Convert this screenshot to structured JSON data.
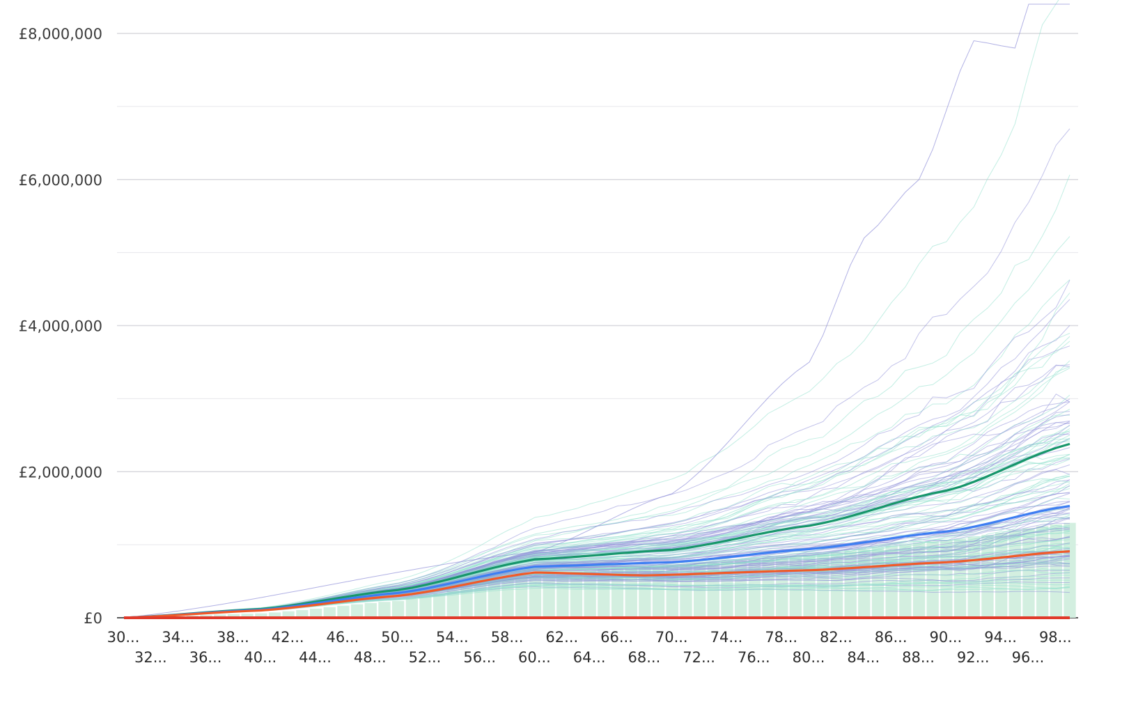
{
  "chart_data": {
    "type": "line",
    "title": "",
    "xlabel": "",
    "ylabel": "",
    "ylim": [
      0,
      8000000
    ],
    "y_ticks": [
      {
        "value": 0,
        "label": "£0"
      },
      {
        "value": 2000000,
        "label": "£2,000,000"
      },
      {
        "value": 4000000,
        "label": "£4,000,000"
      },
      {
        "value": 6000000,
        "label": "£6,000,000"
      },
      {
        "value": 8000000,
        "label": "£8,000,000"
      }
    ],
    "x_ticks_row1": [
      "30...",
      "34...",
      "38...",
      "42...",
      "46...",
      "50...",
      "54...",
      "58...",
      "62...",
      "66...",
      "70...",
      "74...",
      "78...",
      "82...",
      "86...",
      "90...",
      "94...",
      "98..."
    ],
    "x_ticks_row2": [
      "32...",
      "36...",
      "40...",
      "44...",
      "48...",
      "52...",
      "56...",
      "60...",
      "64...",
      "68...",
      "72...",
      "76...",
      "80...",
      "84...",
      "88...",
      "92...",
      "96..."
    ],
    "ages": [
      30,
      31,
      32,
      33,
      34,
      35,
      36,
      37,
      38,
      39,
      40,
      41,
      42,
      43,
      44,
      45,
      46,
      47,
      48,
      49,
      50,
      51,
      52,
      53,
      54,
      55,
      56,
      57,
      58,
      59,
      60,
      61,
      62,
      63,
      64,
      65,
      66,
      67,
      68,
      69,
      70,
      71,
      72,
      73,
      74,
      75,
      76,
      77,
      78,
      79,
      80,
      81,
      82,
      83,
      84,
      85,
      86,
      87,
      88,
      89,
      90,
      91,
      92,
      93,
      94,
      95,
      96,
      97,
      98,
      99
    ],
    "grid": true,
    "legend": "none",
    "colors": {
      "upper_line": "#17966b",
      "median_line": "#3d7ef2",
      "lower_line": "#f05a28",
      "zero_line": "#e03a2b",
      "area_fill": "#d3efe0",
      "sim_purple": "#8f8fd8",
      "sim_teal": "#8fe0cc",
      "grid": "#d8d8de"
    },
    "series": [
      {
        "role": "upper",
        "key_points": [
          [
            30,
            0
          ],
          [
            40,
            120000
          ],
          [
            50,
            380000
          ],
          [
            60,
            800000
          ],
          [
            70,
            930000
          ],
          [
            80,
            1260000
          ],
          [
            90,
            1740000
          ],
          [
            99,
            2380000
          ]
        ]
      },
      {
        "role": "median",
        "key_points": [
          [
            30,
            0
          ],
          [
            40,
            110000
          ],
          [
            50,
            340000
          ],
          [
            60,
            700000
          ],
          [
            70,
            760000
          ],
          [
            80,
            940000
          ],
          [
            90,
            1180000
          ],
          [
            99,
            1530000
          ]
        ]
      },
      {
        "role": "lower",
        "key_points": [
          [
            30,
            0
          ],
          [
            40,
            100000
          ],
          [
            50,
            300000
          ],
          [
            60,
            620000
          ],
          [
            68,
            580000
          ],
          [
            80,
            650000
          ],
          [
            90,
            760000
          ],
          [
            99,
            910000
          ]
        ]
      },
      {
        "role": "zero",
        "key_points": [
          [
            30,
            0
          ],
          [
            99,
            0
          ]
        ]
      }
    ],
    "area": {
      "key_points": [
        [
          30,
          0
        ],
        [
          40,
          60000
        ],
        [
          50,
          230000
        ],
        [
          60,
          600000
        ],
        [
          70,
          720000
        ],
        [
          80,
          860000
        ],
        [
          90,
          1060000
        ],
        [
          99,
          1300000
        ]
      ]
    },
    "simulations": {
      "count": 150,
      "note_peak": [
        [
          80,
          3500000
        ],
        [
          84,
          5200000
        ],
        [
          88,
          6000000
        ],
        [
          92,
          7900000
        ],
        [
          95,
          7800000
        ],
        [
          96,
          8400000
        ]
      ]
    }
  }
}
